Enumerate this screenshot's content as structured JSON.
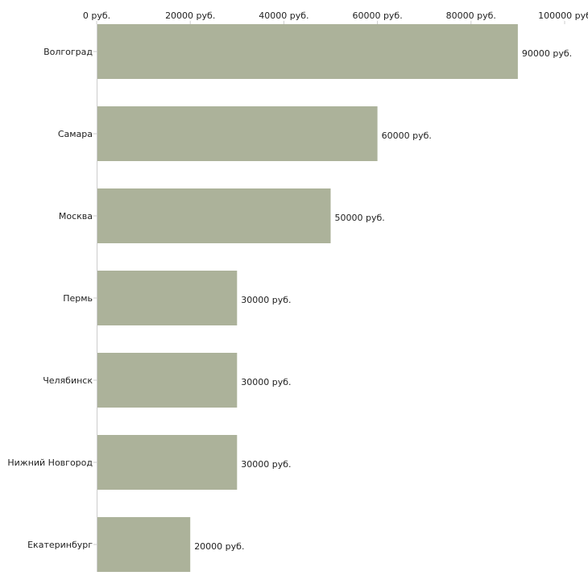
{
  "chart_data": {
    "type": "bar",
    "orientation": "horizontal",
    "title": "",
    "xlabel": "",
    "ylabel": "",
    "categories": [
      "Волгоград",
      "Самара",
      "Москва",
      "Пермь",
      "Челябинск",
      "Нижний Новгород",
      "Екатеринбург"
    ],
    "values": [
      90000,
      60000,
      50000,
      30000,
      30000,
      30000,
      20000
    ],
    "value_labels": [
      "90000 руб.",
      "60000 руб.",
      "50000 руб.",
      "30000 руб.",
      "30000 руб.",
      "30000 руб.",
      "20000 руб."
    ],
    "xlim": [
      0,
      100000
    ],
    "x_ticks": [
      0,
      20000,
      40000,
      60000,
      80000,
      100000
    ],
    "x_tick_labels": [
      "0 руб.",
      "20000 руб.",
      "40000 руб.",
      "60000 руб.",
      "80000 руб.",
      "100000 руб"
    ],
    "axis_position": "top",
    "grid": false,
    "legend": "none"
  },
  "colors": {
    "bar": "#acb29a",
    "axis": "#cccccc",
    "text": "#222222"
  }
}
